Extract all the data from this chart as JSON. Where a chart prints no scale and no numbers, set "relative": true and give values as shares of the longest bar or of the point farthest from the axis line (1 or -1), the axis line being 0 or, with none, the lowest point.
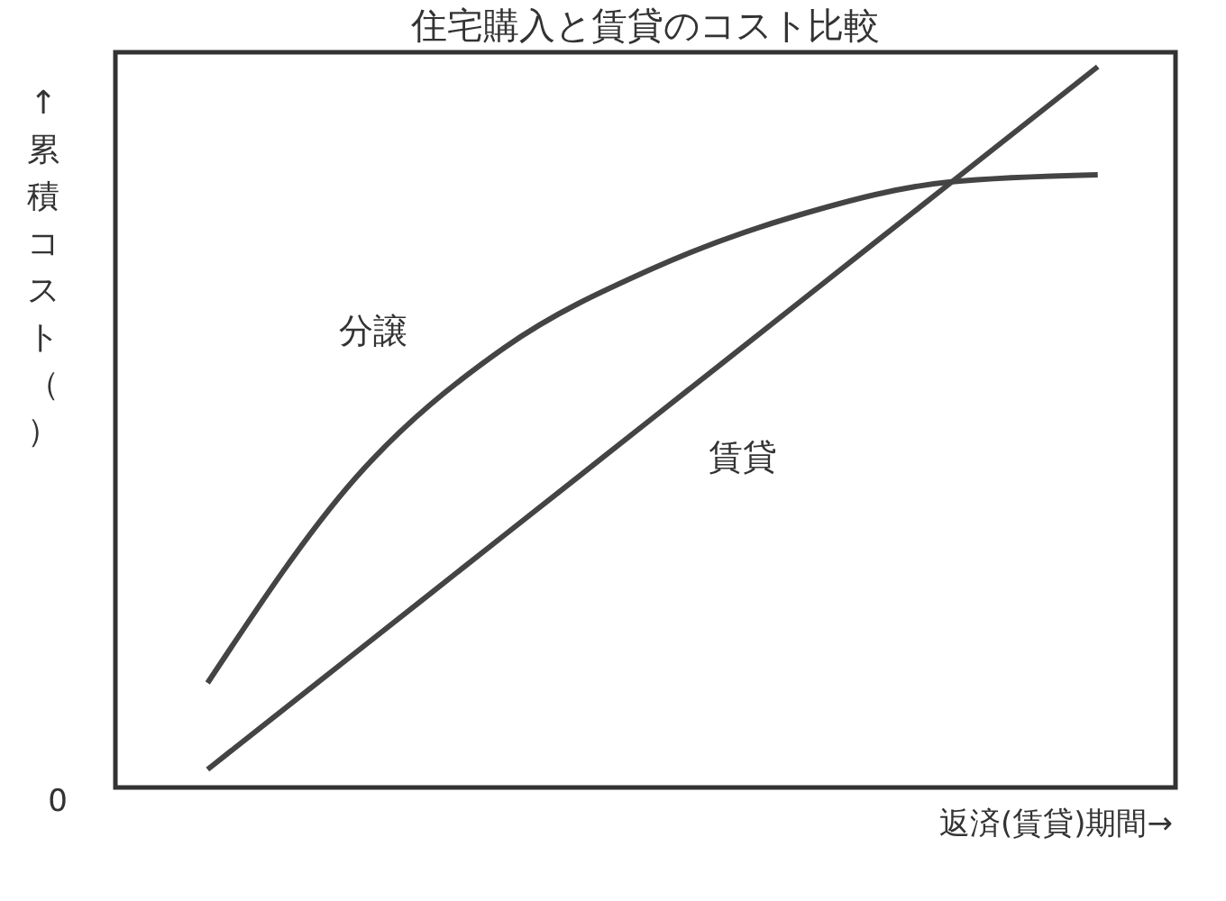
{
  "chart_data": {
    "type": "line",
    "title": "住宅購入と賃貸のコスト比較",
    "xlabel": "返済(賃貸)期間→",
    "ylabel": "↑累積コスト（）",
    "relative": true,
    "categories": [
      null,
      null,
      null,
      null,
      null,
      null,
      null
    ],
    "series": [
      {
        "name": "分譲",
        "color": "#444444",
        "values": [
          0.145,
          0.43,
          0.61,
          0.72,
          0.795,
          0.84,
          0.85
        ]
      },
      {
        "name": "賃貸",
        "color": "#444444",
        "values": [
          0.025,
          0.1875,
          0.35,
          0.5125,
          0.675,
          0.8375,
          1
        ]
      }
    ],
    "annotations": [
      "0"
    ],
    "grid": false,
    "legend": false,
    "marker": "none",
    "line_style": "solid"
  }
}
